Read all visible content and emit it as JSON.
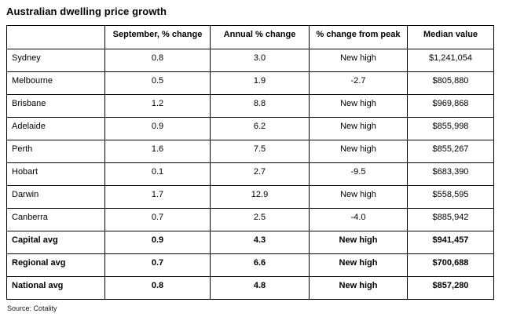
{
  "title": "Australian dwelling price growth",
  "source_note": "Source: Cotality",
  "chart_data": {
    "type": "table",
    "title": "Australian dwelling price growth",
    "columns": [
      "",
      "September, % change",
      "Annual % change",
      "% change from peak",
      "Median value"
    ],
    "rows": [
      {
        "cells": [
          "Sydney",
          "0.8",
          "3.0",
          "New high",
          "$1,241,054"
        ],
        "emphasis": false
      },
      {
        "cells": [
          "Melbourne",
          "0.5",
          "1.9",
          "-2.7",
          "$805,880"
        ],
        "emphasis": false
      },
      {
        "cells": [
          "Brisbane",
          "1.2",
          "8.8",
          "New high",
          "$969,868"
        ],
        "emphasis": false
      },
      {
        "cells": [
          "Adelaide",
          "0.9",
          "6.2",
          "New high",
          "$855,998"
        ],
        "emphasis": false
      },
      {
        "cells": [
          "Perth",
          "1.6",
          "7.5",
          "New high",
          "$855,267"
        ],
        "emphasis": false
      },
      {
        "cells": [
          "Hobart",
          "0.1",
          "2.7",
          "-9.5",
          "$683,390"
        ],
        "emphasis": false
      },
      {
        "cells": [
          "Darwin",
          "1.7",
          "12.9",
          "New high",
          "$558,595"
        ],
        "emphasis": false
      },
      {
        "cells": [
          "Canberra",
          "0.7",
          "2.5",
          "-4.0",
          "$885,942"
        ],
        "emphasis": false
      },
      {
        "cells": [
          "Capital avg",
          "0.9",
          "4.3",
          "New high",
          "$941,457"
        ],
        "emphasis": true
      },
      {
        "cells": [
          "Regional avg",
          "0.7",
          "6.6",
          "New high",
          "$700,688"
        ],
        "emphasis": true
      },
      {
        "cells": [
          "National avg",
          "0.8",
          "4.8",
          "New high",
          "$857,280"
        ],
        "emphasis": true
      }
    ],
    "source": "Source: Cotality"
  }
}
